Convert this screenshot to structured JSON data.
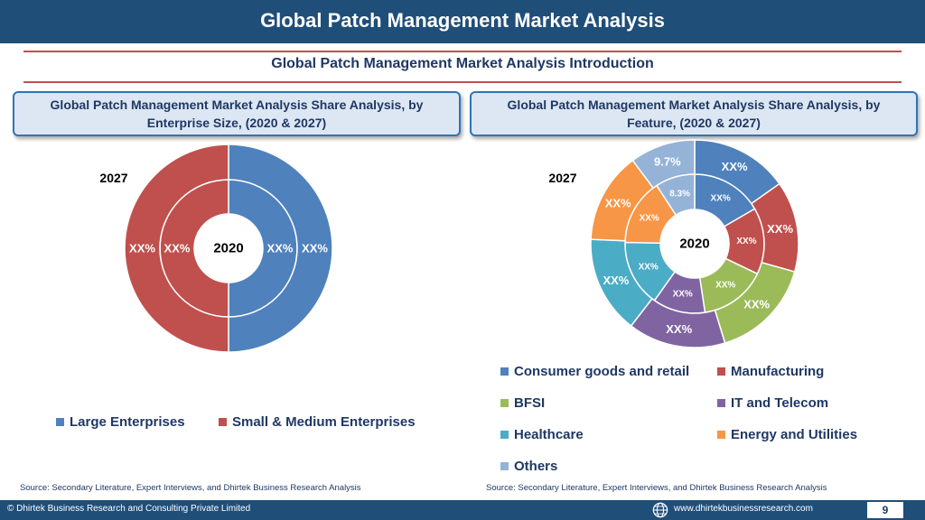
{
  "header": {
    "title": "Global Patch Management Market Analysis"
  },
  "subtitle": "Global Patch Management Market Analysis  Introduction",
  "left_panel": {
    "box_line1": "Global Patch Management Market Analysis  Share Analysis, by",
    "box_line2": "Enterprise Size, (2020 & 2027)",
    "outer_year": "2027",
    "inner_year": "2020",
    "legend": [
      {
        "label": "Large Enterprises",
        "color": "#4f81bd"
      },
      {
        "label": "Small & Medium Enterprises",
        "color": "#c0504d"
      }
    ],
    "source": "Source: Secondary Literature, Expert Interviews, and Dhirtek Business Research Analysis"
  },
  "right_panel": {
    "box_line1": "Global Patch Management Market Analysis  Share Analysis, by",
    "box_line2": "Feature, (2020 & 2027)",
    "outer_year": "2027",
    "inner_year": "2020",
    "legend": [
      {
        "label": "Consumer goods and retail",
        "color": "#4f81bd"
      },
      {
        "label": "Manufacturing",
        "color": "#c0504d"
      },
      {
        "label": "BFSI",
        "color": "#9bbb59"
      },
      {
        "label": "IT and Telecom",
        "color": "#8064a2"
      },
      {
        "label": "Healthcare",
        "color": "#4bacc6"
      },
      {
        "label": "Energy and Utilities",
        "color": "#f79646"
      },
      {
        "label": "Others",
        "color": "#95b3d7"
      }
    ],
    "source": "Source: Secondary Literature, Expert Interviews, and Dhirtek Business Research Analysis"
  },
  "chart_data": [
    {
      "type": "pie",
      "chart_subtype": "doughnut",
      "rings": [
        {
          "name": "2020",
          "values": [
            50,
            50
          ],
          "labels": [
            "XX%",
            "XX%"
          ]
        },
        {
          "name": "2027",
          "values": [
            50,
            50
          ],
          "labels": [
            "XX%",
            "XX%"
          ]
        }
      ],
      "categories": [
        "Large Enterprises",
        "Small & Medium Enterprises"
      ],
      "colors": [
        "#4f81bd",
        "#c0504d"
      ],
      "legend_position": "bottom"
    },
    {
      "type": "pie",
      "chart_subtype": "doughnut",
      "rings": [
        {
          "name": "2020",
          "values": [
            15,
            14,
            14,
            11,
            14,
            14,
            8.3
          ],
          "labels": [
            "XX%",
            "XX%",
            "XX%",
            "XX%",
            "XX%",
            "XX%",
            "8.3%"
          ]
        },
        {
          "name": "2027",
          "values": [
            14.5,
            13.5,
            15.2,
            14.5,
            14.5,
            13.5,
            9.7
          ],
          "labels": [
            "XX%",
            "XX%",
            "XX%",
            "XX%",
            "XX%",
            "XX%",
            "9.7%"
          ]
        }
      ],
      "categories": [
        "Consumer goods and retail",
        "Manufacturing",
        "BFSI",
        "IT and Telecom",
        "Healthcare",
        "Energy and Utilities",
        "Others"
      ],
      "colors": [
        "#4f81bd",
        "#c0504d",
        "#9bbb59",
        "#8064a2",
        "#4bacc6",
        "#f79646",
        "#95b3d7"
      ],
      "legend_position": "bottom"
    }
  ],
  "footer": {
    "copyright": "© Dhirtek Business Research and Consulting Private Limited",
    "website": "www.dhirtekbusinessresearch.com",
    "page_number": "9"
  }
}
